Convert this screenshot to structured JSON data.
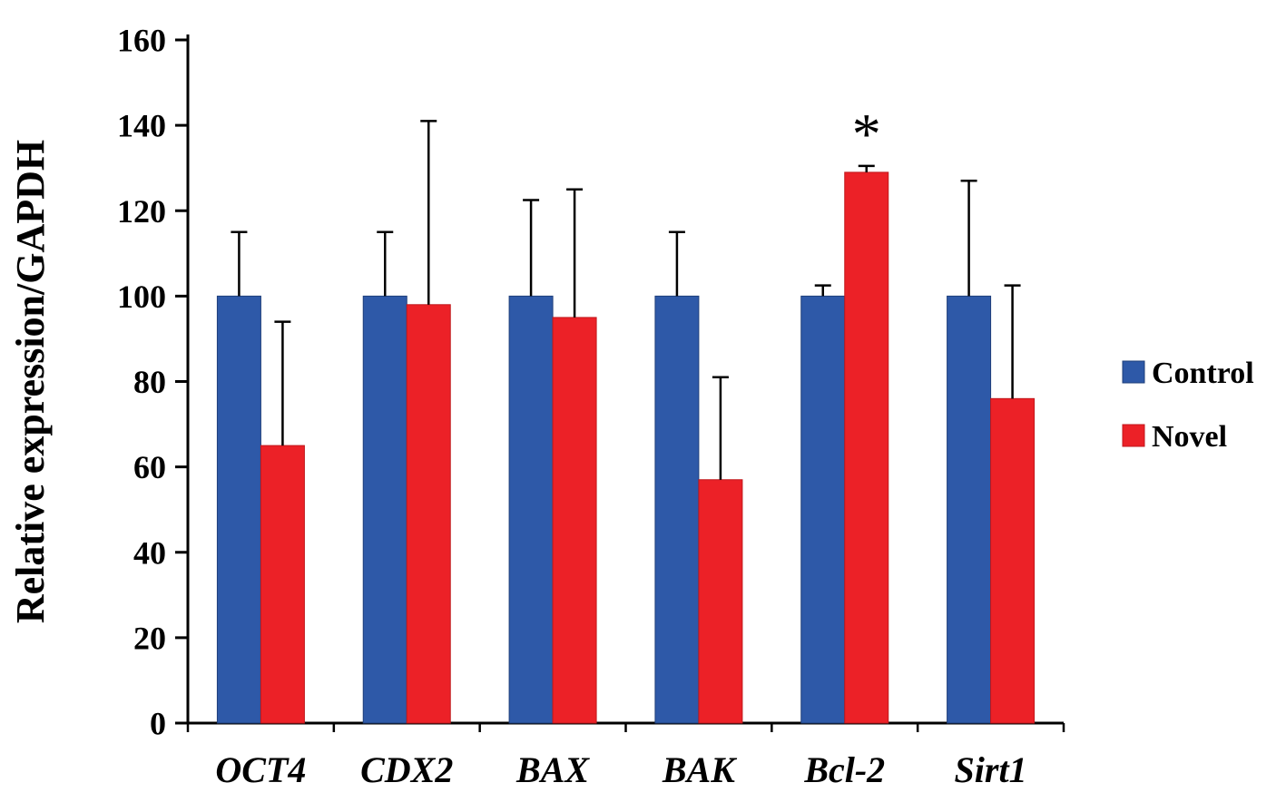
{
  "chart_data": {
    "type": "bar",
    "title": "",
    "xlabel": "",
    "ylabel": "Relative expression/GAPDH",
    "ylim": [
      0,
      160
    ],
    "ytick_step": 20,
    "yticks": [
      0,
      20,
      40,
      60,
      80,
      100,
      120,
      140,
      160
    ],
    "grid": false,
    "legend_position": "right",
    "error_bars": "upper",
    "categories": [
      "OCT4",
      "CDX2",
      "BAX",
      "BAK",
      "Bcl-2",
      "Sirt1"
    ],
    "series": [
      {
        "name": "Control",
        "color": "#2E59A8",
        "edge_color": "#1F3F7A",
        "values": [
          100,
          100,
          100,
          100,
          100,
          100
        ],
        "errors": [
          15,
          15,
          22.5,
          15,
          2.5,
          27
        ]
      },
      {
        "name": "Novel",
        "color": "#EC2127",
        "edge_color": "#C0181C",
        "values": [
          65,
          98,
          95,
          57,
          129,
          76
        ],
        "errors": [
          29,
          43,
          30,
          24,
          1.5,
          26.5
        ]
      }
    ],
    "annotations": [
      {
        "text": "*",
        "category": "Bcl-2",
        "series": "Novel"
      }
    ]
  },
  "colors": {
    "axis": "#000000",
    "text": "#000000",
    "error_bar": "#000000"
  }
}
